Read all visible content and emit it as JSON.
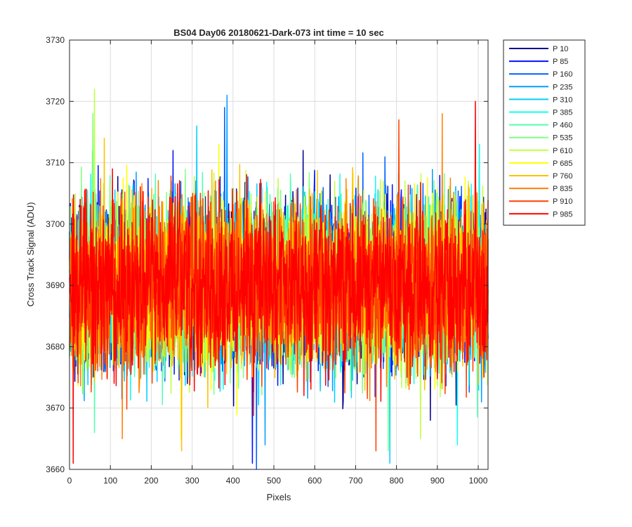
{
  "chart_data": {
    "type": "line",
    "title": "BS04 Day06 20180621-Dark-073 int time = 10 sec",
    "xlabel": "Pixels",
    "ylabel": "Cross Track Signal (ADU)",
    "xlim": [
      0,
      1024
    ],
    "ylim": [
      3660,
      3730
    ],
    "xticks": [
      0,
      100,
      200,
      300,
      400,
      500,
      600,
      700,
      800,
      900,
      1000
    ],
    "yticks": [
      3660,
      3670,
      3680,
      3690,
      3700,
      3710,
      3720,
      3730
    ],
    "grid": true,
    "legend_position": "outside-top-right",
    "n_points": 1024,
    "series": [
      {
        "name": "P 10",
        "color": "#00008f",
        "mean": 3690,
        "spread": 9,
        "max": 3712,
        "min": 3668
      },
      {
        "name": "P 85",
        "color": "#0010ff",
        "mean": 3690,
        "spread": 9,
        "max": 3712,
        "min": 3661
      },
      {
        "name": "P 160",
        "color": "#0060ff",
        "mean": 3690,
        "spread": 9,
        "max": 3719,
        "min": 3660
      },
      {
        "name": "P 235",
        "color": "#00a0ff",
        "mean": 3690,
        "spread": 9,
        "max": 3721,
        "min": 3664
      },
      {
        "name": "P 310",
        "color": "#00d0ff",
        "mean": 3690,
        "spread": 9,
        "max": 3716,
        "min": 3661
      },
      {
        "name": "P 385",
        "color": "#10ffef",
        "mean": 3690,
        "spread": 9,
        "max": 3713,
        "min": 3664
      },
      {
        "name": "P 460",
        "color": "#50ffaf",
        "mean": 3690,
        "spread": 9,
        "max": 3712,
        "min": 3666
      },
      {
        "name": "P 535",
        "color": "#80ff80",
        "mean": 3690,
        "spread": 9,
        "max": 3718,
        "min": 3663
      },
      {
        "name": "P 610",
        "color": "#c0ff40",
        "mean": 3690,
        "spread": 9,
        "max": 3722,
        "min": 3665
      },
      {
        "name": "P 685",
        "color": "#ffff00",
        "mean": 3690,
        "spread": 9,
        "max": 3713,
        "min": 3665
      },
      {
        "name": "P 760",
        "color": "#ffc000",
        "mean": 3690,
        "spread": 9,
        "max": 3714,
        "min": 3663
      },
      {
        "name": "P 835",
        "color": "#ff8000",
        "mean": 3690,
        "spread": 9,
        "max": 3718,
        "min": 3665
      },
      {
        "name": "P 910",
        "color": "#ff4000",
        "mean": 3690,
        "spread": 9,
        "max": 3717,
        "min": 3663
      },
      {
        "name": "P 985",
        "color": "#ff0000",
        "mean": 3690,
        "spread": 9,
        "max": 3720,
        "min": 3661
      }
    ]
  }
}
